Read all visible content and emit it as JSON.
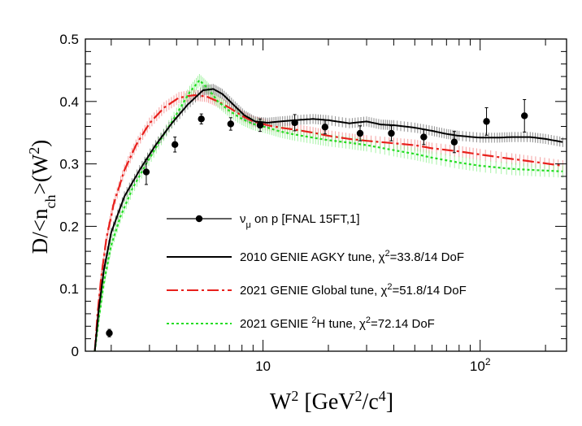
{
  "chart_data": {
    "type": "line",
    "x_scale": "log",
    "xlim": [
      1.52,
      250
    ],
    "ylim": [
      0,
      0.5
    ],
    "grid": false,
    "legend_placement": "bottom-center",
    "xlabel": {
      "base": "W",
      "sup": "2",
      "unit_open": " [GeV",
      "unit_sup1": "2",
      "unit_mid": "/c",
      "unit_sup2": "4",
      "unit_close": "]"
    },
    "ylabel": {
      "pre": "D/<n",
      "sub": "ch",
      "post": ">(W",
      "sup": "2",
      "close": ")"
    },
    "y_ticks": [
      {
        "value": 0,
        "label": "0"
      },
      {
        "value": 0.1,
        "label": "0.1"
      },
      {
        "value": 0.2,
        "label": "0.2"
      },
      {
        "value": 0.3,
        "label": "0.3"
      },
      {
        "value": 0.4,
        "label": "0.4"
      },
      {
        "value": 0.5,
        "label": "0.5"
      }
    ],
    "x_ticks": [
      {
        "value": 10,
        "label": "10",
        "sup": ""
      },
      {
        "value": 100,
        "label": "10",
        "sup": "2"
      }
    ],
    "data_points": {
      "legend": {
        "pre": "ν",
        "sub": "μ",
        "post": " on p [FNAL 15FT,1]"
      },
      "color": "#000000",
      "points": [
        {
          "x": 1.96,
          "y": 0.029,
          "err": 0.006
        },
        {
          "x": 2.9,
          "y": 0.287,
          "err": 0.02
        },
        {
          "x": 3.93,
          "y": 0.331,
          "err": 0.012
        },
        {
          "x": 5.2,
          "y": 0.372,
          "err": 0.008
        },
        {
          "x": 7.1,
          "y": 0.364,
          "err": 0.01
        },
        {
          "x": 9.7,
          "y": 0.362,
          "err": 0.01
        },
        {
          "x": 14.0,
          "y": 0.366,
          "err": 0.013
        },
        {
          "x": 19.3,
          "y": 0.359,
          "err": 0.011
        },
        {
          "x": 28.0,
          "y": 0.349,
          "err": 0.012
        },
        {
          "x": 39.0,
          "y": 0.349,
          "err": 0.012
        },
        {
          "x": 55.0,
          "y": 0.343,
          "err": 0.012
        },
        {
          "x": 76.0,
          "y": 0.335,
          "err": 0.017
        },
        {
          "x": 107.0,
          "y": 0.368,
          "err": 0.022
        },
        {
          "x": 160.0,
          "y": 0.377,
          "err": 0.026
        }
      ]
    },
    "series": [
      {
        "legend": {
          "pre": "2010 GENIE AGKY tune, χ",
          "sup": "2",
          "post": "=33.8/14 DoF"
        },
        "color": "#000000",
        "band_color": "#666666",
        "style": "solid",
        "x": [
          1.68,
          1.75,
          1.85,
          2.0,
          2.3,
          2.7,
          3.2,
          3.8,
          4.5,
          5.3,
          5.9,
          6.5,
          7.3,
          8.2,
          9.2,
          10.5,
          12.0,
          14.0,
          17.0,
          20.0,
          25.0,
          30.0,
          35.0,
          40.0,
          50.0,
          60.0,
          70.0,
          80.0,
          100.0,
          120.0,
          140.0,
          170.0,
          200.0,
          240.0
        ],
        "y": [
          0.0,
          0.065,
          0.13,
          0.19,
          0.248,
          0.29,
          0.33,
          0.365,
          0.395,
          0.418,
          0.42,
          0.412,
          0.395,
          0.378,
          0.368,
          0.366,
          0.368,
          0.37,
          0.372,
          0.37,
          0.365,
          0.368,
          0.363,
          0.362,
          0.358,
          0.353,
          0.348,
          0.345,
          0.342,
          0.342,
          0.343,
          0.343,
          0.34,
          0.335
        ],
        "band": 0.008
      },
      {
        "legend": {
          "pre": "2021 GENIE Global tune, χ",
          "sup": "2",
          "post": "=51.8/14 DoF"
        },
        "color": "#e8201c",
        "band_color": "#f08080",
        "style": "dashdot",
        "x": [
          1.68,
          1.73,
          1.8,
          1.9,
          2.05,
          2.3,
          2.6,
          3.0,
          3.5,
          4.1,
          4.8,
          5.5,
          6.2,
          7.0,
          8.0,
          9.0,
          10.5,
          12.0,
          14.0,
          17.0,
          20.0,
          25.0,
          30.0,
          40.0,
          50.0,
          60.0,
          80.0,
          100.0,
          140.0,
          180.0,
          240.0
        ],
        "y": [
          0.0,
          0.06,
          0.12,
          0.18,
          0.235,
          0.29,
          0.33,
          0.365,
          0.39,
          0.406,
          0.41,
          0.408,
          0.4,
          0.39,
          0.377,
          0.368,
          0.362,
          0.358,
          0.355,
          0.35,
          0.345,
          0.34,
          0.337,
          0.333,
          0.33,
          0.325,
          0.32,
          0.315,
          0.308,
          0.303,
          0.297
        ],
        "band": 0.009
      },
      {
        "legend": {
          "pre": "2021 GENIE ",
          "sup": "2",
          "post": "H tune, χ",
          "sup2": "2",
          "post2": "=72.14 DoF"
        },
        "color": "#22dd22",
        "band_color": "#88ee88",
        "style": "dotted",
        "x": [
          1.68,
          1.75,
          1.85,
          2.0,
          2.2,
          2.5,
          2.9,
          3.4,
          4.0,
          4.6,
          5.1,
          5.6,
          6.2,
          7.0,
          8.0,
          9.0,
          10.5,
          12.0,
          14.0,
          17.0,
          20.0,
          25.0,
          30.0,
          40.0,
          50.0,
          60.0,
          80.0,
          100.0,
          140.0,
          180.0,
          240.0
        ],
        "y": [
          0.0,
          0.05,
          0.11,
          0.17,
          0.215,
          0.26,
          0.3,
          0.34,
          0.38,
          0.415,
          0.434,
          0.42,
          0.4,
          0.385,
          0.372,
          0.364,
          0.358,
          0.352,
          0.347,
          0.342,
          0.338,
          0.334,
          0.33,
          0.322,
          0.316,
          0.31,
          0.302,
          0.297,
          0.292,
          0.29,
          0.288
        ],
        "band": 0.01
      }
    ]
  }
}
